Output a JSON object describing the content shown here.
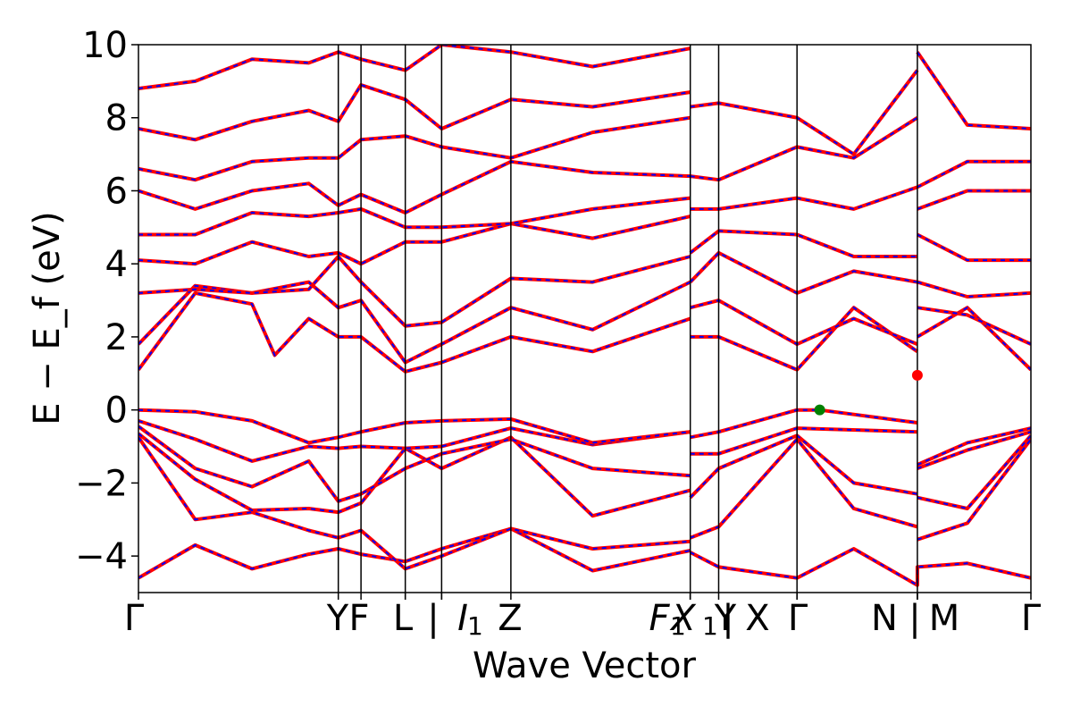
{
  "chart_data": {
    "type": "line",
    "title": "",
    "xlabel": "Wave Vector",
    "ylabel": "E − E_f (eV)",
    "ylim": [
      -5,
      10
    ],
    "y_ticks": [
      "−4",
      "−2",
      "0",
      "2",
      "4",
      "6",
      "8",
      "10"
    ],
    "y_tick_values": [
      -4,
      -2,
      0,
      2,
      4,
      6,
      8,
      10
    ],
    "grid": false,
    "legend": "none",
    "colors": {
      "band_solid": "#ff0000",
      "band_dashed": "#0000ff",
      "vbm": "#008000",
      "cbm": "#ff0000",
      "kpath_line": "#000000"
    },
    "x_range": [
      0,
      8.45
    ],
    "kpath_ticks": [
      {
        "x": 0.0,
        "label": "Γ"
      },
      {
        "x": 1.76,
        "label": "Y"
      },
      {
        "x": 1.96,
        "label": "F"
      },
      {
        "x": 2.35,
        "label": "L"
      },
      {
        "x": 2.35,
        "label": "|"
      },
      {
        "x": 2.67,
        "label": "I"
      },
      {
        "x": 2.67,
        "sub": "1"
      },
      {
        "x": 3.28,
        "label": "Z"
      },
      {
        "x": 4.86,
        "label": "F"
      },
      {
        "x": 4.86,
        "sub": "1"
      },
      {
        "x": 4.86,
        "label": "X"
      },
      {
        "x": 4.86,
        "sub": "1"
      },
      {
        "x": 4.86,
        "label": "|"
      },
      {
        "x": 5.11,
        "label": "Y"
      },
      {
        "x": 5.8,
        "label": "X"
      },
      {
        "x": 5.8,
        "label": "Γ"
      },
      {
        "x": 6.86,
        "label": "N"
      },
      {
        "x": 6.86,
        "label": "|"
      },
      {
        "x": 6.86,
        "label": "M"
      },
      {
        "x": 7.86,
        "label": "Γ"
      }
    ],
    "vbm": {
      "x": 6.0,
      "y": 0.0
    },
    "cbm": {
      "x": 6.86,
      "y": 0.95
    },
    "series": [
      {
        "x": [
          0,
          0.5,
          1,
          1.5,
          1.76,
          1.96,
          2.35,
          2.67,
          3.28,
          4,
          4.86
        ],
        "y": [
          -4.6,
          -3.7,
          -4.35,
          -3.95,
          -3.8,
          -3.95,
          -4.15,
          -3.8,
          -3.25,
          -4.4,
          -3.85
        ]
      },
      {
        "x": [
          4.86,
          5.11,
          5.8,
          6.3,
          6.86,
          6.86,
          7.3,
          7.86
        ],
        "y": [
          -3.9,
          -4.3,
          -4.6,
          -3.8,
          -4.8,
          -4.3,
          -4.2,
          -4.6
        ]
      },
      {
        "x": [
          0,
          0.5,
          1,
          1.5,
          1.76,
          1.96,
          2.35,
          2.67,
          3.28,
          4,
          4.86
        ],
        "y": [
          -0.75,
          -3.0,
          -2.8,
          -3.3,
          -3.5,
          -3.3,
          -4.35,
          -4.0,
          -3.25,
          -3.8,
          -3.6
        ]
      },
      {
        "x": [
          0,
          0.5,
          1,
          1.5,
          1.76,
          1.96,
          2.35,
          2.67,
          3.28,
          4,
          4.86
        ],
        "y": [
          -0.65,
          -1.9,
          -2.75,
          -2.7,
          -2.8,
          -2.55,
          -1.05,
          -1.6,
          -0.75,
          -2.9,
          -2.2
        ]
      },
      {
        "x": [
          0,
          0.5,
          1,
          1.5,
          1.76,
          1.96,
          2.35,
          2.67,
          3.28,
          4,
          4.86
        ],
        "y": [
          -0.45,
          -1.6,
          -2.1,
          -1.4,
          -2.5,
          -2.3,
          -1.6,
          -1.2,
          -0.8,
          -1.6,
          -1.8
        ]
      },
      {
        "x": [
          0,
          0.5,
          1,
          1.5,
          1.76,
          1.96,
          2.35,
          2.67,
          3.28,
          4,
          4.86
        ],
        "y": [
          -0.3,
          -0.8,
          -1.4,
          -1.0,
          -1.05,
          -1.0,
          -1.05,
          -1.0,
          -0.5,
          -0.95,
          -0.6
        ]
      },
      {
        "x": [
          0,
          0.5,
          1,
          1.5,
          1.76,
          1.96,
          2.35,
          2.67,
          3.28,
          4,
          4.86
        ],
        "y": [
          0.0,
          -0.05,
          -0.3,
          -0.9,
          -0.75,
          -0.6,
          -0.35,
          -0.3,
          -0.25,
          -0.9,
          -0.6
        ]
      },
      {
        "x": [
          4.86,
          5.11,
          5.8,
          6.0,
          6.86
        ],
        "y": [
          -0.75,
          -0.6,
          0.0,
          0.0,
          -0.35
        ]
      },
      {
        "x": [
          4.86,
          5.11,
          5.8,
          6.86
        ],
        "y": [
          -1.2,
          -1.2,
          -0.5,
          -0.6
        ]
      },
      {
        "x": [
          4.86,
          5.11,
          5.8,
          6.3,
          6.86
        ],
        "y": [
          -2.4,
          -1.6,
          -0.7,
          -2.0,
          -2.3
        ]
      },
      {
        "x": [
          4.86,
          5.11,
          5.8,
          6.3,
          6.86
        ],
        "y": [
          -3.5,
          -3.2,
          -0.8,
          -2.7,
          -3.2
        ]
      },
      {
        "x": [
          6.86,
          7.3,
          7.86
        ],
        "y": [
          -1.5,
          -0.9,
          -0.5
        ]
      },
      {
        "x": [
          6.86,
          7.3,
          7.86
        ],
        "y": [
          -1.6,
          -1.1,
          -0.6
        ]
      },
      {
        "x": [
          6.86,
          7.3,
          7.86
        ],
        "y": [
          -2.4,
          -2.7,
          -0.7
        ]
      },
      {
        "x": [
          6.86,
          7.3,
          7.86
        ],
        "y": [
          -3.55,
          -3.1,
          -0.8
        ]
      },
      {
        "x": [
          0,
          0.5,
          1,
          1.2,
          1.5,
          1.76,
          1.96,
          2.35,
          2.67,
          3.28,
          4,
          4.86
        ],
        "y": [
          1.1,
          3.2,
          2.9,
          1.5,
          2.5,
          2.0,
          2.0,
          1.05,
          1.3,
          2.0,
          1.6,
          2.5
        ]
      },
      {
        "x": [
          0,
          0.5,
          1,
          1.5,
          1.76,
          1.96,
          2.35,
          2.67,
          3.28,
          4,
          4.86
        ],
        "y": [
          1.8,
          3.4,
          3.2,
          3.5,
          2.8,
          3.0,
          1.3,
          1.8,
          2.8,
          2.2,
          3.5
        ]
      },
      {
        "x": [
          0,
          0.5,
          1,
          1.5,
          1.76,
          1.96,
          2.35,
          2.67,
          3.28,
          4,
          4.86
        ],
        "y": [
          3.2,
          3.3,
          3.2,
          3.3,
          4.2,
          3.5,
          2.3,
          2.4,
          3.6,
          3.5,
          4.2
        ]
      },
      {
        "x": [
          0,
          0.5,
          1,
          1.5,
          1.76,
          1.96,
          2.35,
          2.67,
          3.28,
          4,
          4.86
        ],
        "y": [
          4.1,
          4.0,
          4.6,
          4.2,
          4.3,
          4.0,
          4.6,
          4.6,
          5.1,
          4.7,
          5.3
        ]
      },
      {
        "x": [
          0,
          0.5,
          1,
          1.5,
          1.76,
          1.96,
          2.35,
          2.67,
          3.28,
          4,
          4.86
        ],
        "y": [
          4.8,
          4.8,
          5.4,
          5.3,
          5.4,
          5.5,
          5.0,
          5.0,
          5.1,
          5.5,
          5.8
        ]
      },
      {
        "x": [
          0,
          0.5,
          1,
          1.5,
          1.76,
          1.96,
          2.35,
          2.67,
          3.28,
          4,
          4.86
        ],
        "y": [
          6.0,
          5.5,
          6.0,
          6.2,
          5.6,
          5.9,
          5.4,
          5.9,
          6.8,
          6.5,
          6.4
        ]
      },
      {
        "x": [
          0,
          0.5,
          1,
          1.5,
          1.76,
          1.96,
          2.35,
          2.67,
          3.28,
          4,
          4.86
        ],
        "y": [
          6.6,
          6.3,
          6.8,
          6.9,
          6.9,
          7.4,
          7.5,
          7.2,
          6.9,
          7.6,
          8.0
        ]
      },
      {
        "x": [
          0,
          0.5,
          1,
          1.5,
          1.76,
          1.96,
          2.35,
          2.67,
          3.28,
          4,
          4.86
        ],
        "y": [
          7.7,
          7.4,
          7.9,
          8.2,
          7.9,
          8.9,
          8.5,
          7.7,
          8.5,
          8.3,
          8.7
        ]
      },
      {
        "x": [
          0,
          0.5,
          1,
          1.5,
          1.76,
          1.96,
          2.35,
          2.67,
          3.28,
          4,
          4.86
        ],
        "y": [
          8.8,
          9.0,
          9.6,
          9.5,
          9.8,
          9.6,
          9.3,
          10,
          9.8,
          9.4,
          9.9
        ]
      },
      {
        "x": [
          4.86,
          5.11,
          5.8,
          6.3,
          6.86
        ],
        "y": [
          2.0,
          2.0,
          1.1,
          2.8,
          1.6
        ]
      },
      {
        "x": [
          4.86,
          5.11,
          5.8,
          6.3,
          6.86
        ],
        "y": [
          2.8,
          3.0,
          1.8,
          2.5,
          1.8
        ]
      },
      {
        "x": [
          4.86,
          5.11,
          5.8,
          6.3,
          6.86
        ],
        "y": [
          3.5,
          4.3,
          3.2,
          3.8,
          3.5
        ]
      },
      {
        "x": [
          4.86,
          5.11,
          5.8,
          6.3,
          6.86
        ],
        "y": [
          4.3,
          4.9,
          4.8,
          4.2,
          4.2
        ]
      },
      {
        "x": [
          4.86,
          5.11,
          5.8,
          6.3,
          6.86
        ],
        "y": [
          5.5,
          5.5,
          5.8,
          5.5,
          6.1
        ]
      },
      {
        "x": [
          4.86,
          5.11,
          5.8,
          6.3,
          6.86
        ],
        "y": [
          6.4,
          6.3,
          7.2,
          6.9,
          8.0
        ]
      },
      {
        "x": [
          4.86,
          5.11,
          5.8,
          6.3,
          6.86
        ],
        "y": [
          8.3,
          8.4,
          8.0,
          7.0,
          9.3
        ]
      },
      {
        "x": [
          6.86,
          7.3,
          7.86
        ],
        "y": [
          2.0,
          2.8,
          1.1
        ]
      },
      {
        "x": [
          6.86,
          7.3,
          7.86
        ],
        "y": [
          2.8,
          2.6,
          1.8
        ]
      },
      {
        "x": [
          6.86,
          7.3,
          7.86
        ],
        "y": [
          3.5,
          3.1,
          3.2
        ]
      },
      {
        "x": [
          6.86,
          7.3,
          7.86
        ],
        "y": [
          4.8,
          4.1,
          4.1
        ]
      },
      {
        "x": [
          6.86,
          7.3,
          7.86
        ],
        "y": [
          5.5,
          6.0,
          6.0
        ]
      },
      {
        "x": [
          6.86,
          7.3,
          7.86
        ],
        "y": [
          6.1,
          6.8,
          6.8
        ]
      },
      {
        "x": [
          6.86,
          7.3,
          7.86
        ],
        "y": [
          9.8,
          7.8,
          7.7
        ]
      }
    ]
  }
}
